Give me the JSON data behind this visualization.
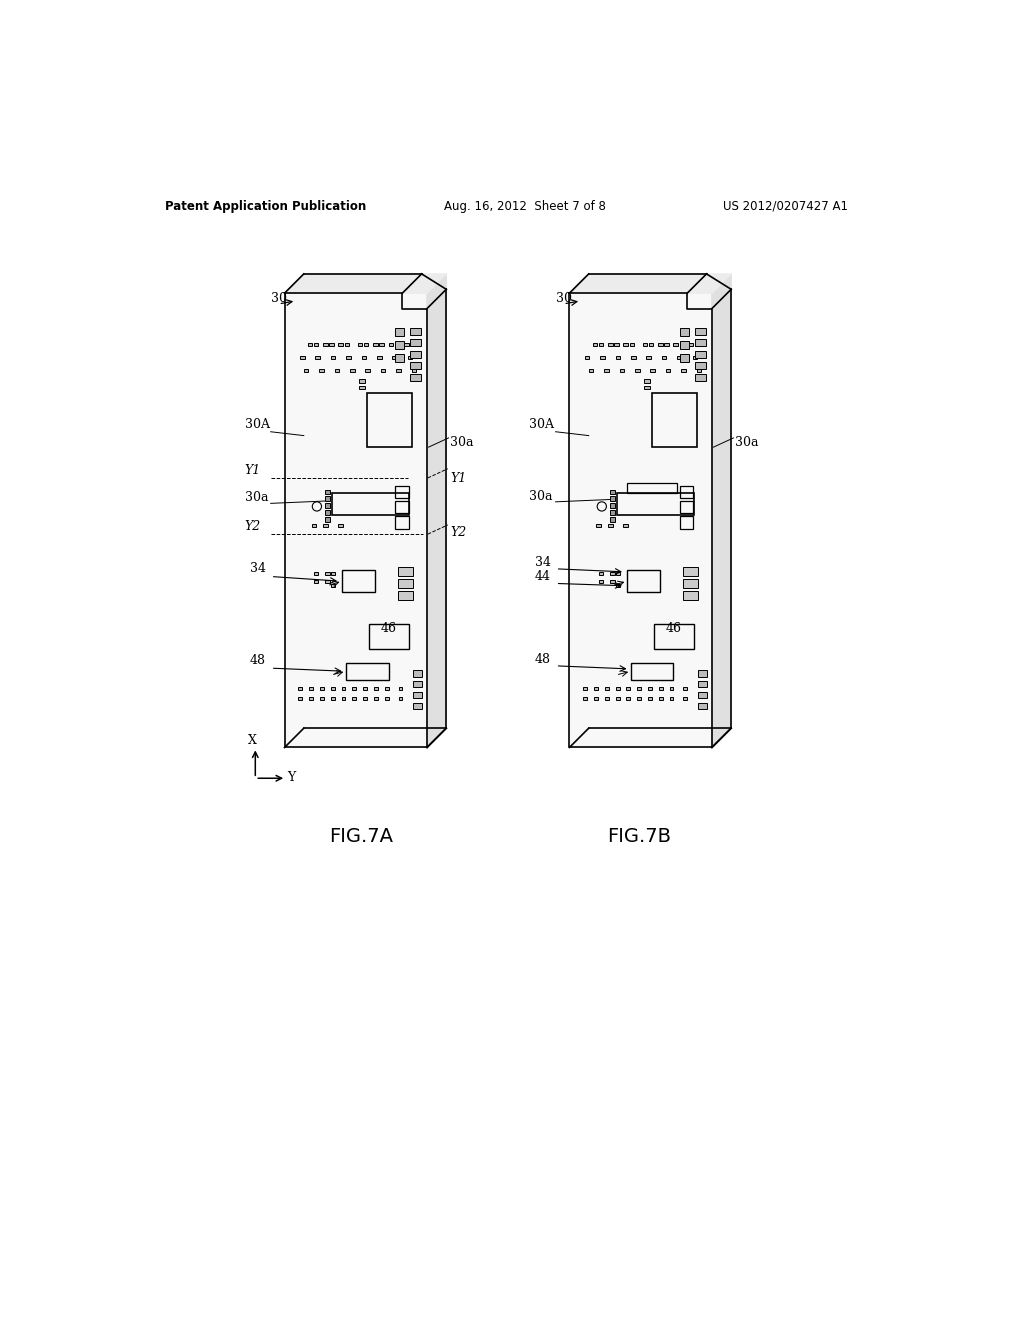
{
  "bg_color": "#ffffff",
  "header_left": "Patent Application Publication",
  "header_center": "Aug. 16, 2012  Sheet 7 of 8",
  "header_right": "US 2012/0207427 A1",
  "fig_label_a": "FIG.7A",
  "fig_label_b": "FIG.7B",
  "line_color": "#000000",
  "line_width": 1.2,
  "board_color": "#f5f5f5",
  "board_edge_color": "#333333"
}
